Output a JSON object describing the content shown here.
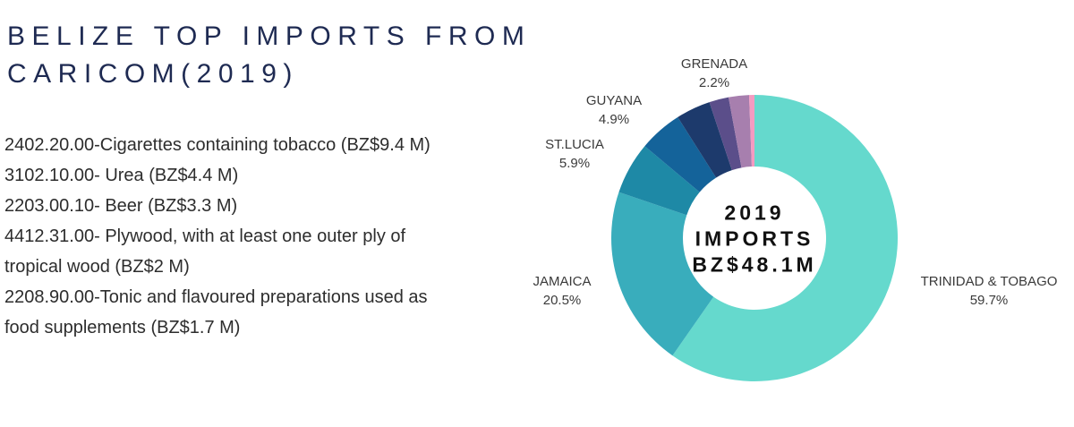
{
  "page": {
    "background": "#ffffff"
  },
  "title": {
    "line1": "BELIZE TOP IMPORTS FROM",
    "line2": "CARICOM(2019)",
    "color": "#1e2a52"
  },
  "imports_list": {
    "lines": [
      "2402.20.00-Cigarettes containing tobacco (BZ$9.4 M)",
      "3102.10.00- Urea (BZ$4.4 M)",
      "2203.00.10- Beer (BZ$3.3 M)",
      "4412.31.00- Plywood, with at least one outer ply of",
      "tropical wood (BZ$2 M)",
      "2208.90.00-Tonic and flavoured preparations used as",
      "food supplements (BZ$1.7 M)"
    ]
  },
  "chart_data": {
    "type": "pie",
    "subtype": "donut",
    "title": "BELIZE TOP IMPORTS FROM CARICOM(2019)",
    "center_label": {
      "line1": "2019",
      "line2": "IMPORTS",
      "line3": "BZ$48.1M"
    },
    "inner_radius_ratio": 0.5,
    "start_angle_deg": 0,
    "direction": "clockwise",
    "legend_position": "labels-outside",
    "segments": [
      {
        "label": "TRINIDAD & TOBAGO",
        "pct_label": "59.7%",
        "value": 59.7,
        "color": "#65d9cd",
        "labeled": true
      },
      {
        "label": "JAMAICA",
        "pct_label": "20.5%",
        "value": 20.5,
        "color": "#39adbc",
        "labeled": true
      },
      {
        "label": "ST.LUCIA",
        "pct_label": "5.9%",
        "value": 5.9,
        "color": "#1e89a6",
        "labeled": true
      },
      {
        "label": "GUYANA",
        "pct_label": "4.9%",
        "value": 4.9,
        "color": "#14639a",
        "labeled": true
      },
      {
        "label": "",
        "pct_label": "",
        "value": 3.9,
        "color": "#1d3a6c",
        "labeled": false,
        "estimated": true
      },
      {
        "label": "GRENADA",
        "pct_label": "2.2%",
        "value": 2.2,
        "color": "#5b4e8a",
        "labeled": true
      },
      {
        "label": "",
        "pct_label": "",
        "value": 2.3,
        "color": "#a77fae",
        "labeled": false,
        "estimated": true
      },
      {
        "label": "",
        "pct_label": "",
        "value": 0.6,
        "color": "#f49bc1",
        "labeled": false,
        "estimated": true
      }
    ]
  }
}
